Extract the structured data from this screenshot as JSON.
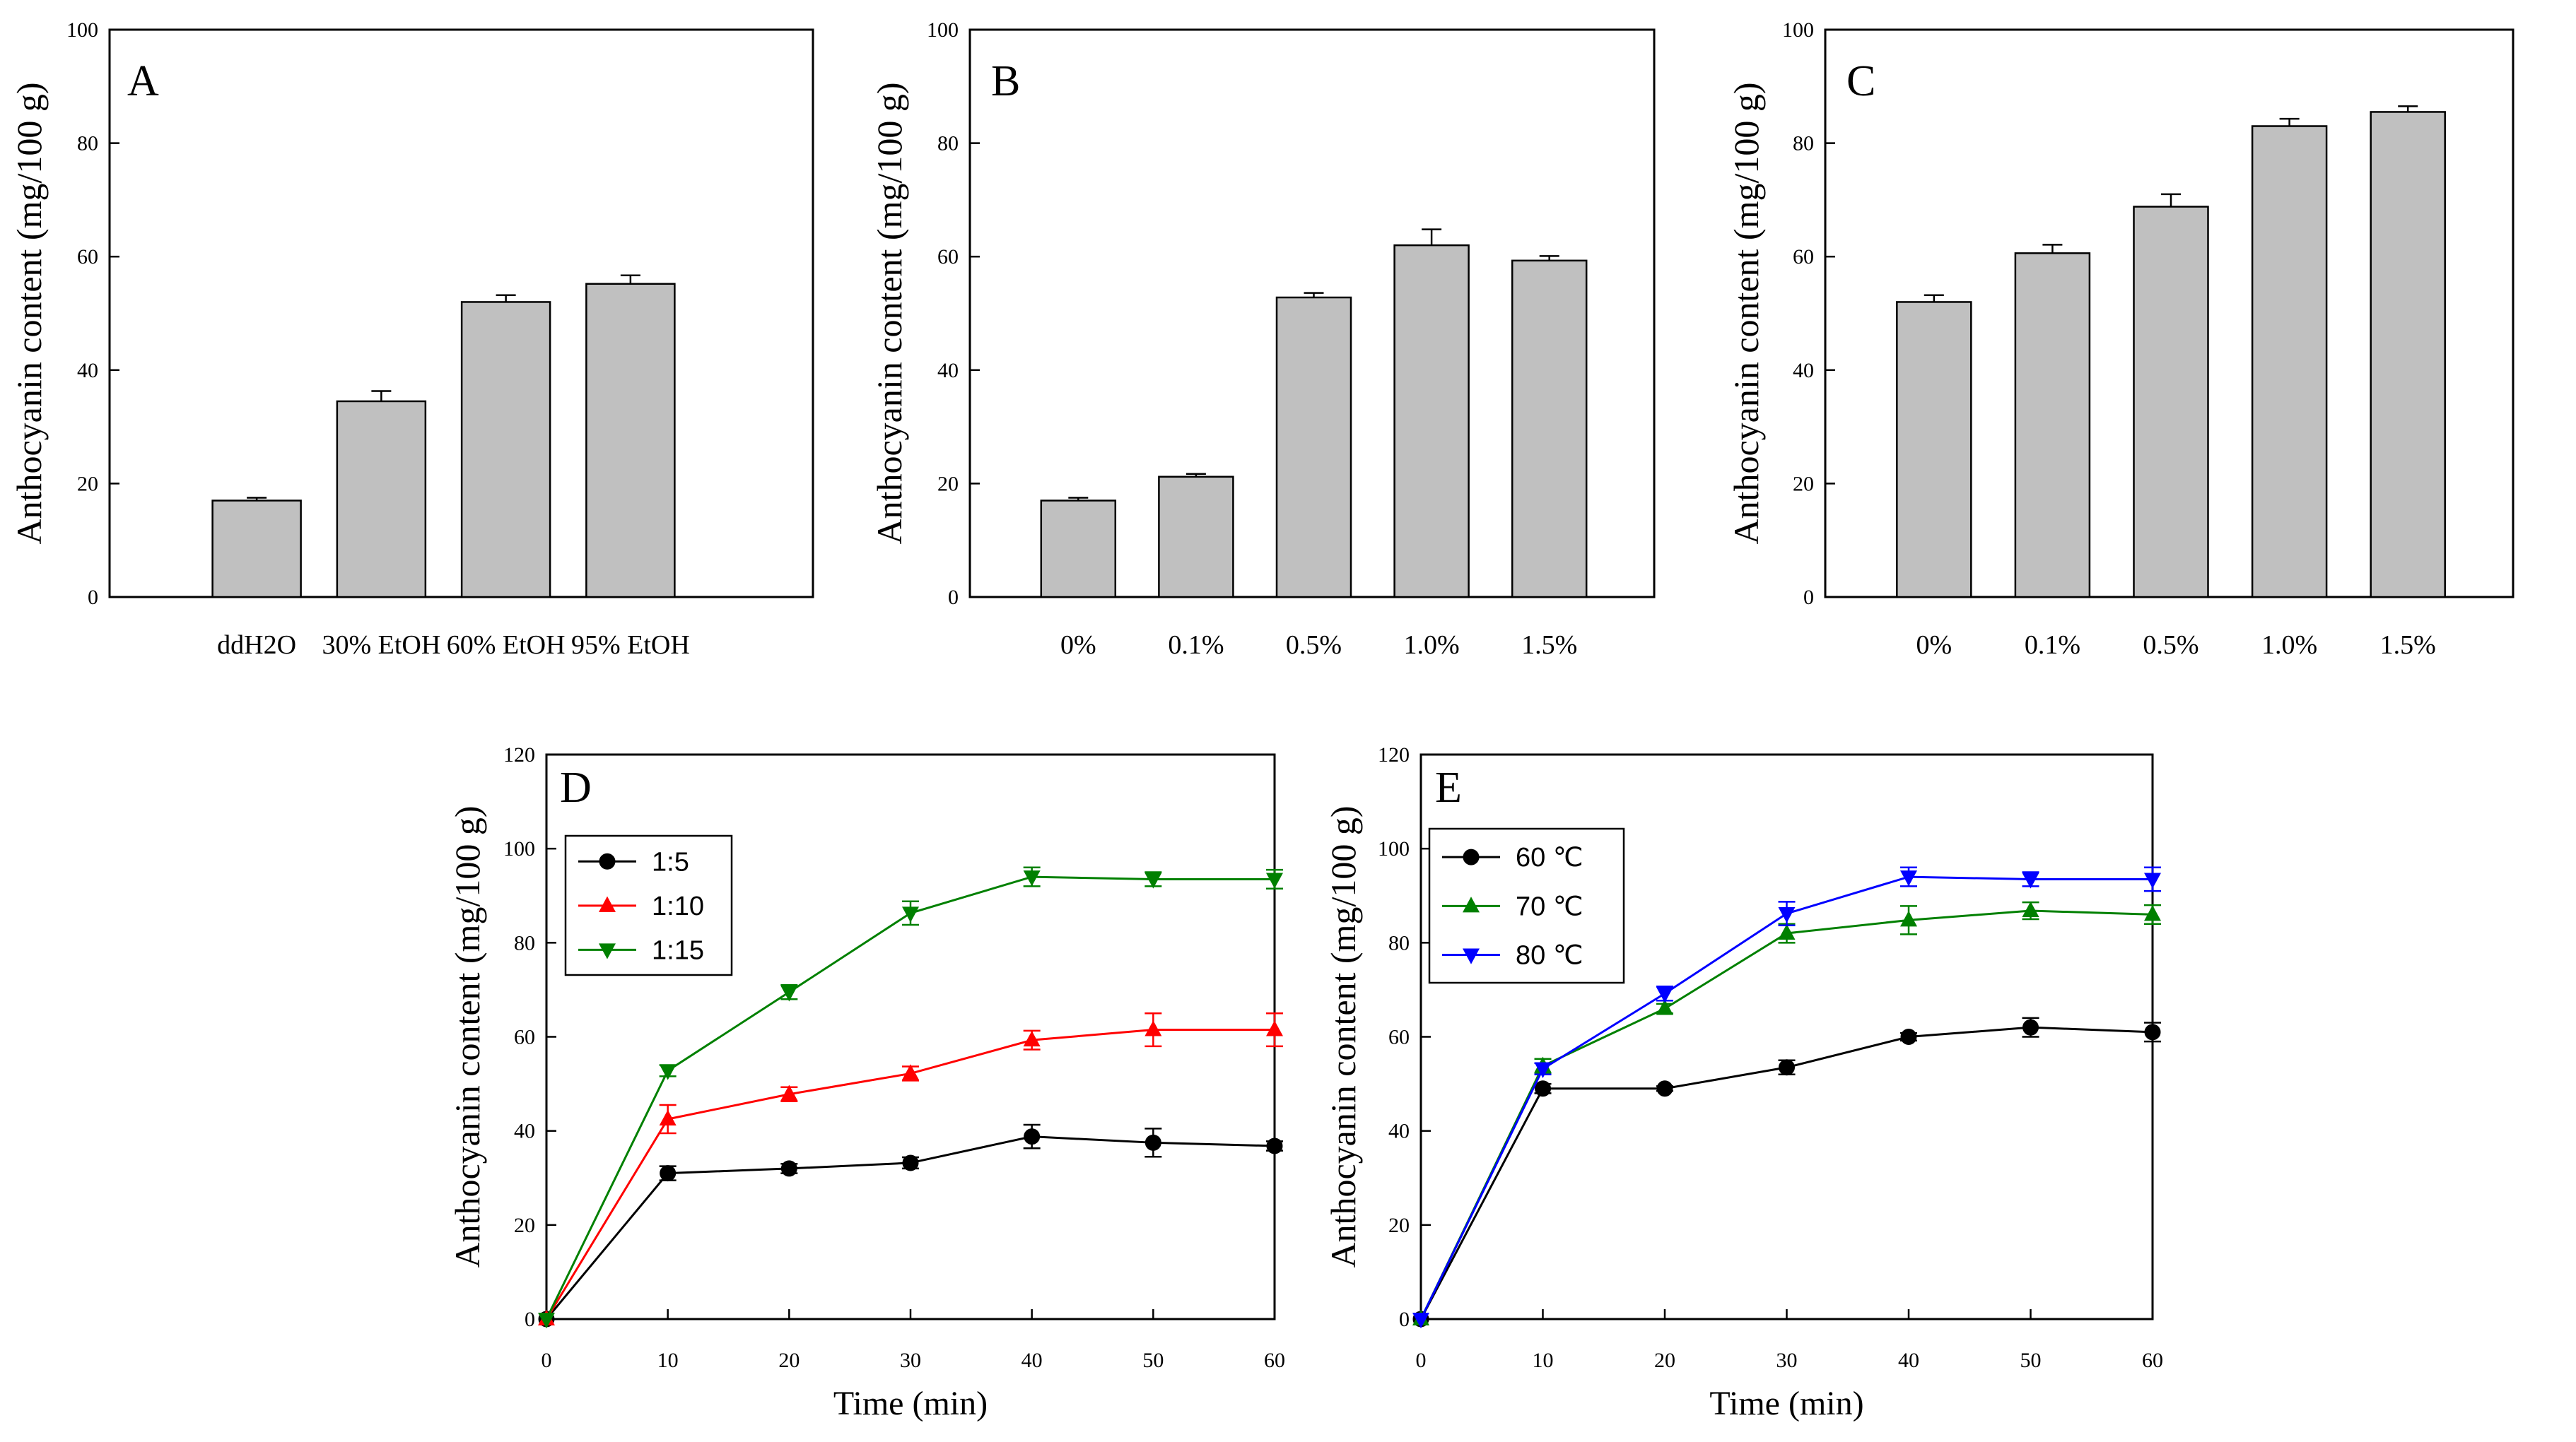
{
  "chart_data": [
    {
      "panel": "A",
      "type": "bar",
      "ylabel": "Anthocyanin content (mg/100 g)",
      "xlabel": "",
      "ylim": [
        0,
        100
      ],
      "yticks": [
        0,
        20,
        40,
        60,
        80,
        100
      ],
      "categories": [
        "ddH2O",
        "30% EtOH",
        "60% EtOH",
        "95% EtOH"
      ],
      "values": [
        17,
        34.5,
        52,
        55.2
      ],
      "errors": [
        0.5,
        1.8,
        1.2,
        1.5
      ]
    },
    {
      "panel": "B",
      "type": "bar",
      "ylabel": "Anthocyanin content (mg/100 g)",
      "xlabel": "",
      "ylim": [
        0,
        100
      ],
      "yticks": [
        0,
        20,
        40,
        60,
        80,
        100
      ],
      "categories": [
        "0%",
        "0.1%",
        "0.5%",
        "1.0%",
        "1.5%"
      ],
      "values": [
        17,
        21.2,
        52.8,
        62,
        59.3
      ],
      "errors": [
        0.5,
        0.5,
        0.8,
        2.8,
        0.8
      ]
    },
    {
      "panel": "C",
      "type": "bar",
      "ylabel": "Anthocyanin content (mg/100 g)",
      "xlabel": "",
      "ylim": [
        0,
        100
      ],
      "yticks": [
        0,
        20,
        40,
        60,
        80,
        100
      ],
      "categories": [
        "0%",
        "0.1%",
        "0.5%",
        "1.0%",
        "1.5%"
      ],
      "values": [
        52,
        60.6,
        68.8,
        83,
        85.5
      ],
      "errors": [
        1.2,
        1.5,
        2.2,
        1.3,
        1.0
      ]
    },
    {
      "panel": "D",
      "type": "line",
      "ylabel": "Anthocyanin content (mg/100 g)",
      "xlabel": "Time (min)",
      "xlim": [
        0,
        60
      ],
      "ylim": [
        0,
        120
      ],
      "xticks": [
        0,
        10,
        20,
        30,
        40,
        50,
        60
      ],
      "yticks": [
        0,
        20,
        40,
        60,
        80,
        100,
        120
      ],
      "x": [
        0,
        10,
        20,
        30,
        40,
        50,
        60
      ],
      "legend_position": "top-left",
      "series": [
        {
          "name": "1:5",
          "color": "#000000",
          "marker": "circle",
          "values": [
            0,
            31,
            32,
            33.2,
            38.8,
            37.5,
            36.8
          ],
          "errors": [
            0,
            1.5,
            1,
            1.2,
            2.5,
            3,
            1
          ]
        },
        {
          "name": "1:10",
          "color": "#ff0000",
          "marker": "triangle-up",
          "values": [
            0,
            42.5,
            47.8,
            52.2,
            59.3,
            61.5,
            61.5
          ],
          "errors": [
            0,
            3,
            1.5,
            1.5,
            2,
            3.5,
            3.5
          ]
        },
        {
          "name": "1:15",
          "color": "#008000",
          "marker": "triangle-down",
          "values": [
            0,
            52.8,
            69.5,
            86.3,
            94,
            93.5,
            93.5
          ],
          "errors": [
            0,
            1.2,
            1.5,
            2.5,
            2,
            1.5,
            2
          ]
        }
      ]
    },
    {
      "panel": "E",
      "type": "line",
      "ylabel": "Anthocyanin content (mg/100 g)",
      "xlabel": "Time (min)",
      "xlim": [
        0,
        60
      ],
      "ylim": [
        0,
        120
      ],
      "xticks": [
        0,
        10,
        20,
        30,
        40,
        50,
        60
      ],
      "yticks": [
        0,
        20,
        40,
        60,
        80,
        100,
        120
      ],
      "x": [
        0,
        10,
        20,
        30,
        40,
        50,
        60
      ],
      "legend_position": "top-left",
      "series": [
        {
          "name": "60 ℃",
          "color": "#000000",
          "marker": "circle",
          "values": [
            0,
            49,
            49,
            53.5,
            60,
            62,
            61
          ],
          "errors": [
            0,
            1,
            0.5,
            1.5,
            0.8,
            2,
            2
          ]
        },
        {
          "name": "70 ℃",
          "color": "#008000",
          "marker": "triangle-up",
          "values": [
            0,
            53.8,
            66,
            82,
            84.8,
            86.8,
            86
          ],
          "errors": [
            0,
            1.5,
            1,
            2,
            3,
            1.8,
            2
          ]
        },
        {
          "name": "80 ℃",
          "color": "#0000ff",
          "marker": "triangle-down",
          "values": [
            0,
            53.2,
            69.2,
            86.2,
            94,
            93.5,
            93.5
          ],
          "errors": [
            0,
            1.2,
            1.5,
            2.5,
            2,
            1.5,
            2.5
          ]
        }
      ]
    }
  ]
}
